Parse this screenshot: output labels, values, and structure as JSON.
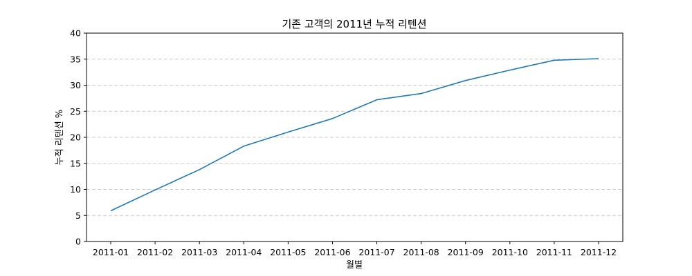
{
  "chart_data": {
    "type": "line",
    "title": "기존 고객의 2011년 누적 리텐션",
    "xlabel": "월별",
    "ylabel": "누적 리텐션 %",
    "categories": [
      "2011-01",
      "2011-02",
      "2011-03",
      "2011-04",
      "2011-05",
      "2011-06",
      "2011-07",
      "2011-08",
      "2011-09",
      "2011-10",
      "2011-11",
      "2011-12"
    ],
    "series": [
      {
        "values": [
          5.9,
          9.9,
          13.8,
          18.3,
          21.0,
          23.6,
          27.2,
          28.4,
          30.9,
          32.9,
          34.8,
          35.1
        ],
        "color": "#1f77b4"
      }
    ],
    "ylim": [
      0,
      40
    ],
    "yticks": [
      0,
      5,
      10,
      15,
      20,
      25,
      30,
      35,
      40
    ],
    "grid": "y-dashed",
    "legend": "none"
  }
}
